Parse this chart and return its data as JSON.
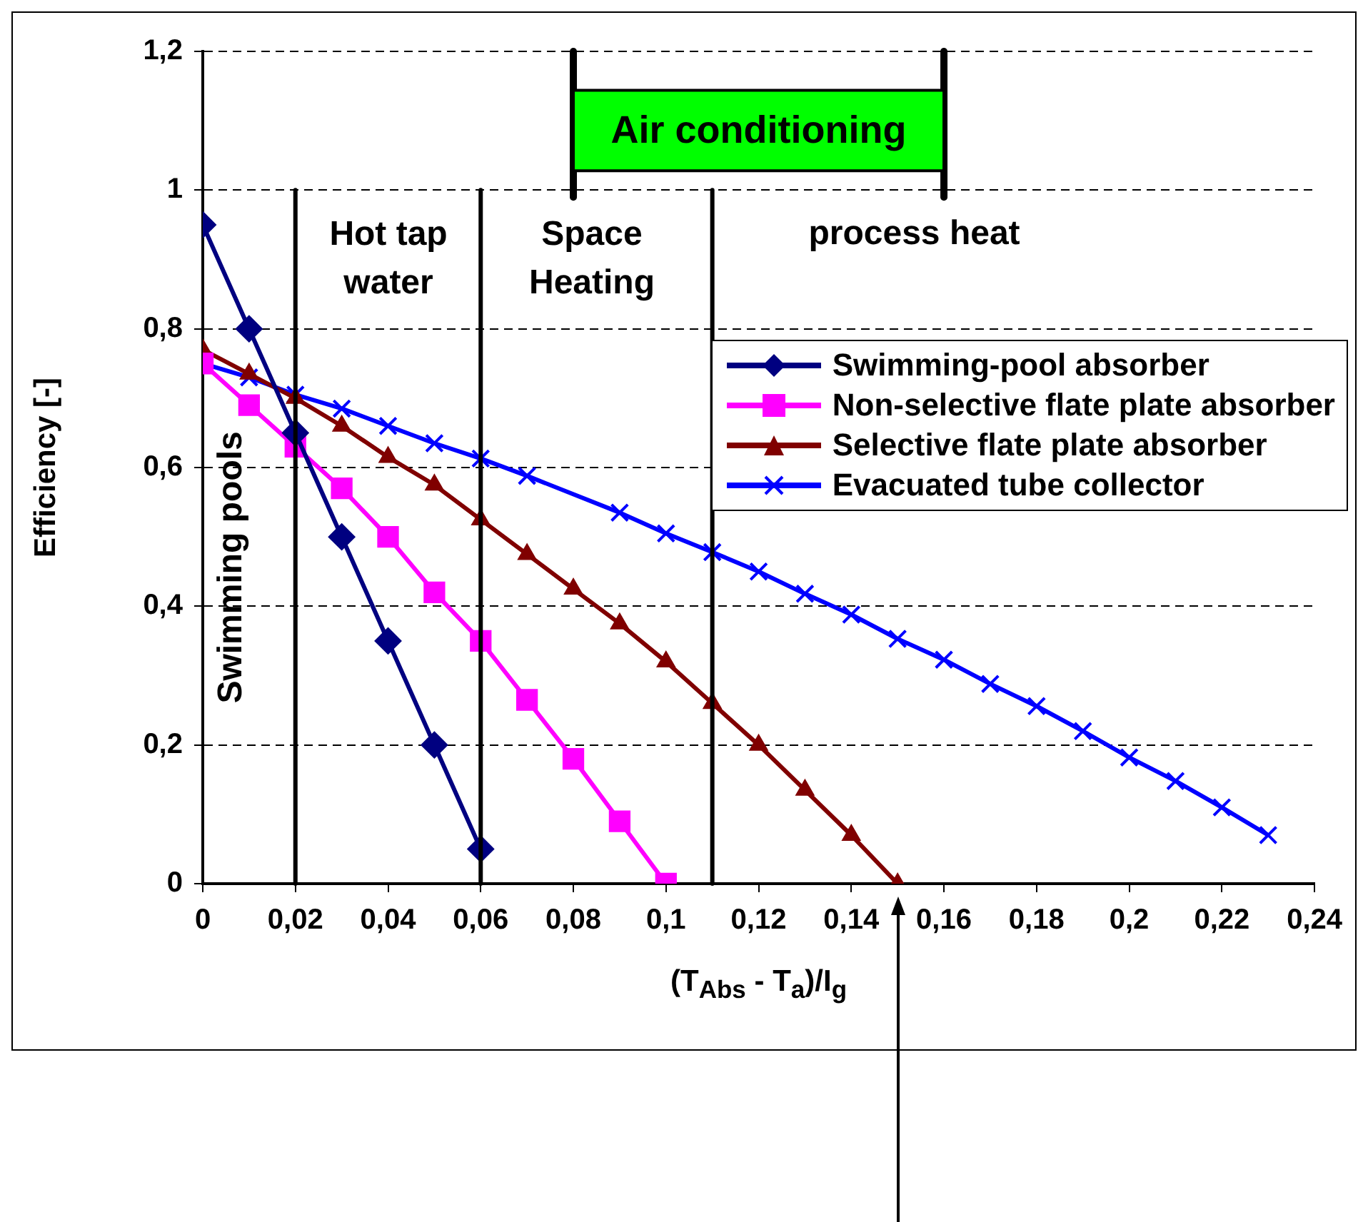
{
  "chart_data": {
    "type": "line",
    "xlabel": "(T$_{Abs}$ - T$_{a}$)/I$_{g}$",
    "ylabel": "Efficiency [-]",
    "xlim": [
      0,
      0.24
    ],
    "ylim": [
      0,
      1.2
    ],
    "xticks": [
      0,
      {
        "value": 0.02,
        "label": "0,02"
      },
      {
        "value": 0.04,
        "label": "0,04"
      },
      {
        "value": 0.06,
        "label": "0,06"
      },
      {
        "value": 0.08,
        "label": "0,08"
      },
      {
        "value": 0.1,
        "label": "0,1"
      },
      {
        "value": 0.12,
        "label": "0,12"
      },
      {
        "value": 0.14,
        "label": "0,14"
      },
      {
        "value": 0.16,
        "label": "0,16"
      },
      {
        "value": 0.18,
        "label": "0,18"
      },
      {
        "value": 0.2,
        "label": "0,2"
      },
      {
        "value": 0.22,
        "label": "0,22"
      },
      {
        "value": 0.24,
        "label": "0,24"
      }
    ],
    "yticks": [
      0,
      {
        "value": 0.2,
        "label": "0,2"
      },
      {
        "value": 0.4,
        "label": "0,4"
      },
      {
        "value": 0.6,
        "label": "0,6"
      },
      {
        "value": 0.8,
        "label": "0,8"
      },
      1,
      {
        "value": 1.2,
        "label": "1,2"
      }
    ],
    "grid": "y",
    "legend": "top right",
    "line_style": "solid",
    "series": [
      {
        "name": "Swimming-pool absorber",
        "color": "#000080",
        "marker": "diamond",
        "x": [
          0,
          0.01,
          0.02,
          0.03,
          0.04,
          0.05,
          0.06
        ],
        "values": [
          0.95,
          0.8,
          0.65,
          0.5,
          0.35,
          0.2,
          0.05
        ]
      },
      {
        "name": "Non-selective flate plate absorber",
        "color": "#ff00ff",
        "marker": "square",
        "x": [
          0,
          0.01,
          0.02,
          0.03,
          0.04,
          0.05,
          0.06,
          0.07,
          0.08,
          0.09,
          0.1
        ],
        "values": [
          0.75,
          0.69,
          0.63,
          0.57,
          0.5,
          0.42,
          0.35,
          0.265,
          0.18,
          0.09,
          0
        ]
      },
      {
        "name": "Selective flate plate absorber",
        "color": "#800000",
        "marker": "triangle",
        "x": [
          0,
          0.01,
          0.02,
          0.03,
          0.04,
          0.05,
          0.06,
          0.07,
          0.08,
          0.09,
          0.1,
          0.11,
          0.12,
          0.13,
          0.14,
          0.15
        ],
        "values": [
          0.77,
          0.735,
          0.7,
          0.66,
          0.615,
          0.575,
          0.525,
          0.475,
          0.425,
          0.375,
          0.32,
          0.26,
          0.2,
          0.135,
          0.07,
          0
        ]
      },
      {
        "name": "Evacuated tube collector",
        "color": "#0000ff",
        "marker": "cross",
        "x": [
          0,
          0.01,
          0.02,
          0.03,
          0.04,
          0.05,
          0.06,
          0.07,
          0.08,
          0.09,
          0.1,
          0.11,
          0.12,
          0.13,
          0.14,
          0.15,
          0.16,
          0.17,
          0.18,
          0.19,
          0.2,
          0.21,
          0.22,
          0.23
        ],
        "values": [
          0.75,
          0.73,
          0.705,
          0.685,
          0.66,
          0.635,
          0.613,
          0.588,
          null,
          0.535,
          0.505,
          0.478,
          0.45,
          0.418,
          0.388,
          0.353,
          0.323,
          0.288,
          0.256,
          0.22,
          0.182,
          0.148,
          0.11,
          0.07
        ]
      }
    ],
    "ref_lines": [
      {
        "axis": "x",
        "value": 0.02
      },
      {
        "axis": "x",
        "value": 0.06
      },
      {
        "axis": "x",
        "value": 0.11
      }
    ],
    "bands": [
      {
        "axis": "x",
        "from": 0.08,
        "to": 0.16,
        "label": "Air conditioning",
        "color": "#00ff00"
      }
    ],
    "annotations": [
      "Swimming pools",
      "Hot tap water",
      "Space Heating",
      "process heat"
    ]
  }
}
